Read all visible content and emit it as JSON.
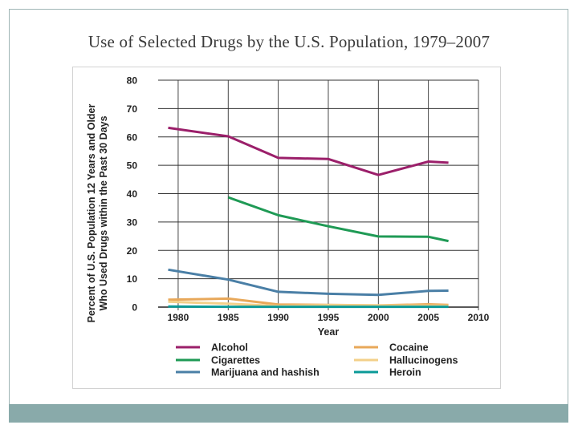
{
  "slide": {
    "title": "Use of Selected Drugs by the U.S. Population, 1979–2007"
  },
  "colors": {
    "background": "#ffffff",
    "footer_bar": "#89aaaa",
    "grid": "#333333"
  },
  "chart_data": {
    "type": "line",
    "title": "Use of Selected Drugs by the U.S. Population, 1979–2007",
    "xlabel": "Year",
    "ylabel": "Percent of U.S. Population 12 Years and Older Who Used Drugs within the Past 30 Days",
    "ylabel_lines": [
      "Percent of U.S. Population 12 Years and Older",
      "Who Used Drugs within the Past 30 Days"
    ],
    "xlim": [
      1978,
      2010
    ],
    "ylim": [
      0,
      80
    ],
    "x_ticks": [
      1980,
      1985,
      1990,
      1995,
      2000,
      2005,
      2010
    ],
    "y_ticks": [
      0,
      10,
      20,
      30,
      40,
      50,
      60,
      70,
      80
    ],
    "grid": true,
    "legend_position": "bottom",
    "series": [
      {
        "name": "Alcohol",
        "color": "#9b1f6a",
        "x": [
          1979,
          1985,
          1990,
          1995,
          2000,
          2005,
          2007
        ],
        "values": [
          63.2,
          60.2,
          52.6,
          52.2,
          46.6,
          51.3,
          50.9
        ]
      },
      {
        "name": "Cigarettes",
        "color": "#1f9a55",
        "x": [
          1985,
          1990,
          1995,
          2000,
          2005,
          2007
        ],
        "values": [
          38.7,
          32.4,
          28.5,
          24.9,
          24.8,
          23.3
        ]
      },
      {
        "name": "Marijuana and hashish",
        "color": "#4a7fa6",
        "x": [
          1979,
          1985,
          1990,
          1995,
          2000,
          2005,
          2007
        ],
        "values": [
          13.2,
          9.7,
          5.4,
          4.7,
          4.3,
          5.7,
          5.8
        ]
      },
      {
        "name": "Cocaine",
        "color": "#e8a85a",
        "x": [
          1979,
          1985,
          1990,
          1995,
          2000,
          2005,
          2007
        ],
        "values": [
          2.6,
          3.0,
          0.9,
          0.8,
          0.6,
          1.0,
          0.8
        ]
      },
      {
        "name": "Hallucinogens",
        "color": "#f3d08a",
        "x": [
          1979,
          1985,
          1990,
          1995,
          2000,
          2005,
          2007
        ],
        "values": [
          1.9,
          1.2,
          0.4,
          0.7,
          0.6,
          0.5,
          0.5
        ]
      },
      {
        "name": "Heroin",
        "color": "#0b9a98",
        "x": [
          1979,
          1985,
          1990,
          1995,
          2000,
          2005,
          2007
        ],
        "values": [
          0.2,
          0.1,
          0.1,
          0.1,
          0.1,
          0.1,
          0.1
        ]
      }
    ]
  }
}
